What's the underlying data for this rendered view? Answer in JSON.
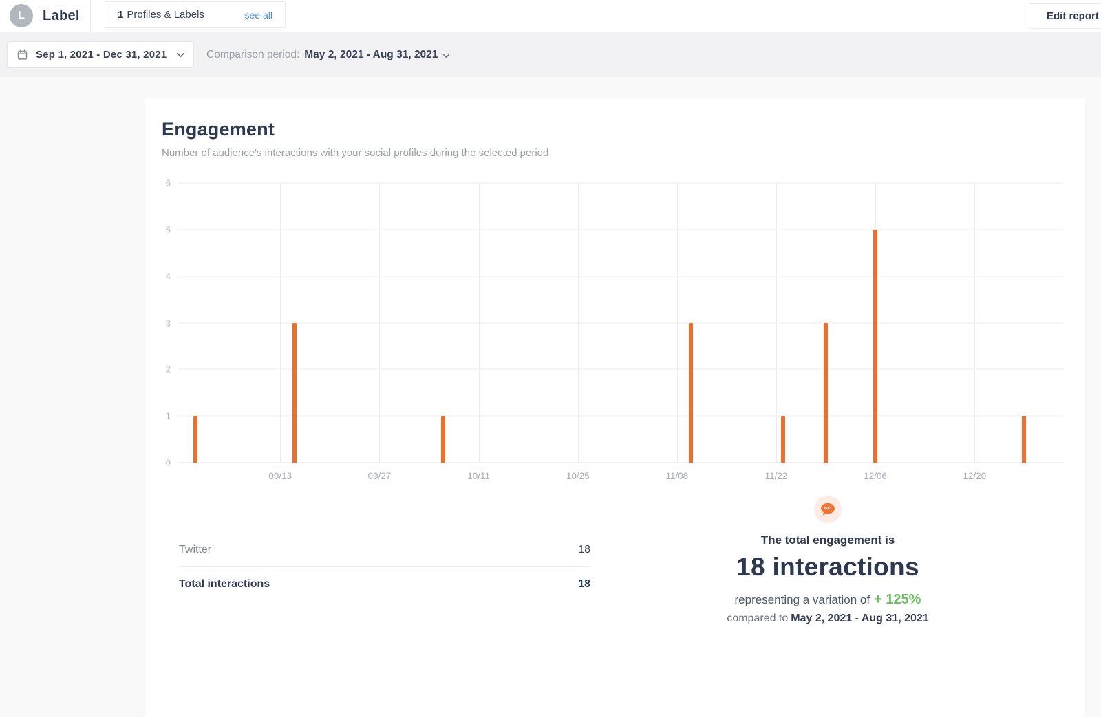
{
  "header": {
    "avatar_initial": "L",
    "brand": "Label",
    "profiles_tab": {
      "count": "1",
      "label": "Profiles & Labels",
      "see_all": "see all"
    },
    "edit_report": "Edit report"
  },
  "filters": {
    "date_range": "Sep 1, 2021 - Dec 31, 2021",
    "comparison_label": "Comparison period:",
    "comparison_value": "May 2, 2021 - Aug 31, 2021"
  },
  "engagement": {
    "title": "Engagement",
    "subtitle": "Number of audience's interactions with your social profiles during the selected period"
  },
  "chart_data": {
    "type": "bar",
    "title": "Engagement",
    "xlabel": "",
    "ylabel": "",
    "ylim": [
      0,
      6
    ],
    "y_ticks": [
      0,
      1,
      2,
      3,
      4,
      5,
      6
    ],
    "x_ticks": [
      "09/13",
      "09/27",
      "10/11",
      "10/25",
      "11/08",
      "11/22",
      "12/06",
      "12/20"
    ],
    "x_axis": {
      "start_day": 29.5,
      "span_days": 125
    },
    "grid": true,
    "legend": false,
    "series": [
      {
        "name": "Twitter",
        "points": [
          {
            "date": "09/01",
            "value": 1
          },
          {
            "date": "09/15",
            "value": 3
          },
          {
            "date": "10/06",
            "value": 1
          },
          {
            "date": "11/10",
            "value": 3
          },
          {
            "date": "11/23",
            "value": 1
          },
          {
            "date": "11/29",
            "value": 3
          },
          {
            "date": "12/06",
            "value": 5
          },
          {
            "date": "12/27",
            "value": 1
          }
        ]
      }
    ]
  },
  "table": {
    "rows": [
      {
        "label": "Twitter",
        "value": "18"
      }
    ],
    "total_label": "Total interactions",
    "total_value": "18"
  },
  "summary": {
    "line1": "The total engagement is",
    "headline": "18 interactions",
    "variation_prefix": "representing a variation of",
    "variation_value": "+ 125%",
    "compared_prefix": "compared to",
    "compared_value": "May 2, 2021 - Aug 31, 2021"
  },
  "colors": {
    "accent_orange": "#ed6f2e",
    "positive_green": "#6cc062",
    "link_blue": "#4a8fe2",
    "navy_text": "#2d3950",
    "peach_icon_bg": "#fdece4",
    "avatar_gray": "#b2b6bf"
  }
}
